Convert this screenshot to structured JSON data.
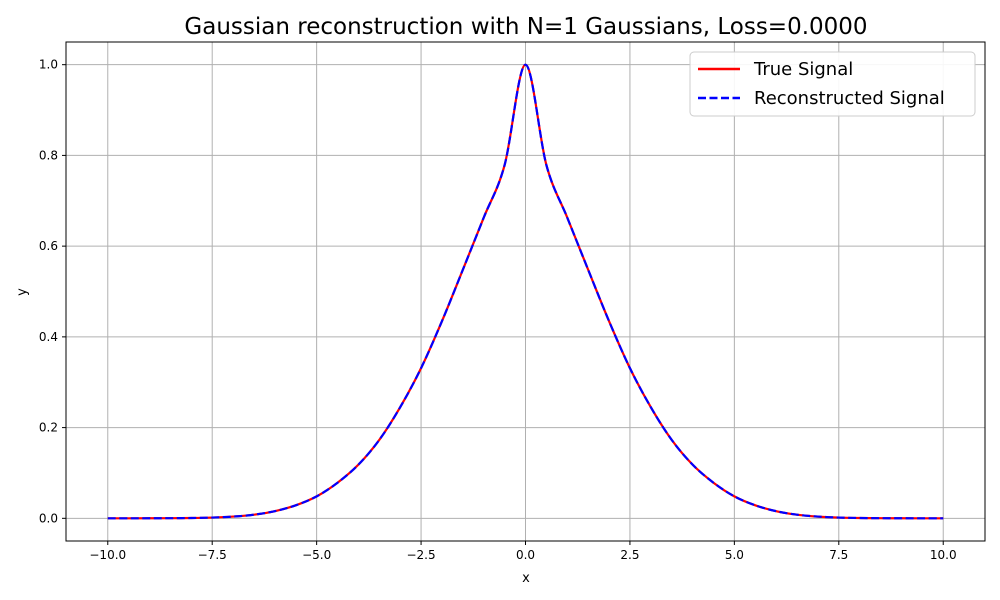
{
  "chart_data": {
    "type": "line",
    "title": "Gaussian reconstruction with N=1 Gaussians, Loss=0.0000",
    "xlabel": "x",
    "ylabel": "y",
    "xlim": [
      -11,
      11
    ],
    "ylim": [
      -0.05,
      1.05
    ],
    "xticks": [
      -10,
      -7.5,
      -5,
      -2.5,
      0,
      2.5,
      5,
      7.5,
      10
    ],
    "xtick_labels": [
      "−10.0",
      "−7.5",
      "−5.0",
      "−2.5",
      "0.0",
      "2.5",
      "5.0",
      "7.5",
      "10.0"
    ],
    "yticks": [
      0,
      0.2,
      0.4,
      0.6,
      0.8,
      1.0
    ],
    "ytick_labels": [
      "0.0",
      "0.2",
      "0.4",
      "0.6",
      "0.8",
      "1.0"
    ],
    "grid": true,
    "legend_position": "top-right",
    "x": [
      -10,
      -9.5,
      -9,
      -8.5,
      -8,
      -7.5,
      -7,
      -6.5,
      -6,
      -5.5,
      -5,
      -4.5,
      -4,
      -3.5,
      -3,
      -2.5,
      -2,
      -1.5,
      -1,
      -0.5,
      0,
      0.5,
      1,
      1.5,
      2,
      2.5,
      3,
      3.5,
      4,
      4.5,
      5,
      5.5,
      6,
      6.5,
      7,
      7.5,
      8,
      8.5,
      9,
      9.5,
      10
    ],
    "series": [
      {
        "name": "True Signal",
        "color": "#ff0000",
        "style": "solid",
        "values": [
          0.0,
          0.0,
          0.0001,
          0.0003,
          0.0007,
          0.0017,
          0.0038,
          0.008,
          0.0158,
          0.0287,
          0.0484,
          0.0785,
          0.1183,
          0.1729,
          0.2449,
          0.3311,
          0.4346,
          0.548,
          0.6629,
          0.7788,
          1.0,
          0.7788,
          0.6629,
          0.548,
          0.4346,
          0.3311,
          0.2449,
          0.1729,
          0.1183,
          0.0785,
          0.0484,
          0.0287,
          0.0158,
          0.008,
          0.0038,
          0.0017,
          0.0007,
          0.0003,
          0.0001,
          0.0,
          0.0
        ]
      },
      {
        "name": "Reconstructed Signal",
        "color": "#0000ff",
        "style": "dashed",
        "values": [
          0.0,
          0.0,
          0.0001,
          0.0003,
          0.0007,
          0.0017,
          0.0038,
          0.008,
          0.0158,
          0.0287,
          0.0484,
          0.0785,
          0.1183,
          0.1729,
          0.2449,
          0.3311,
          0.4346,
          0.548,
          0.6629,
          0.7788,
          1.0,
          0.7788,
          0.6629,
          0.548,
          0.4346,
          0.3311,
          0.2449,
          0.1729,
          0.1183,
          0.0785,
          0.0484,
          0.0287,
          0.0158,
          0.008,
          0.0038,
          0.0017,
          0.0007,
          0.0003,
          0.0001,
          0.0,
          0.0
        ]
      }
    ]
  }
}
